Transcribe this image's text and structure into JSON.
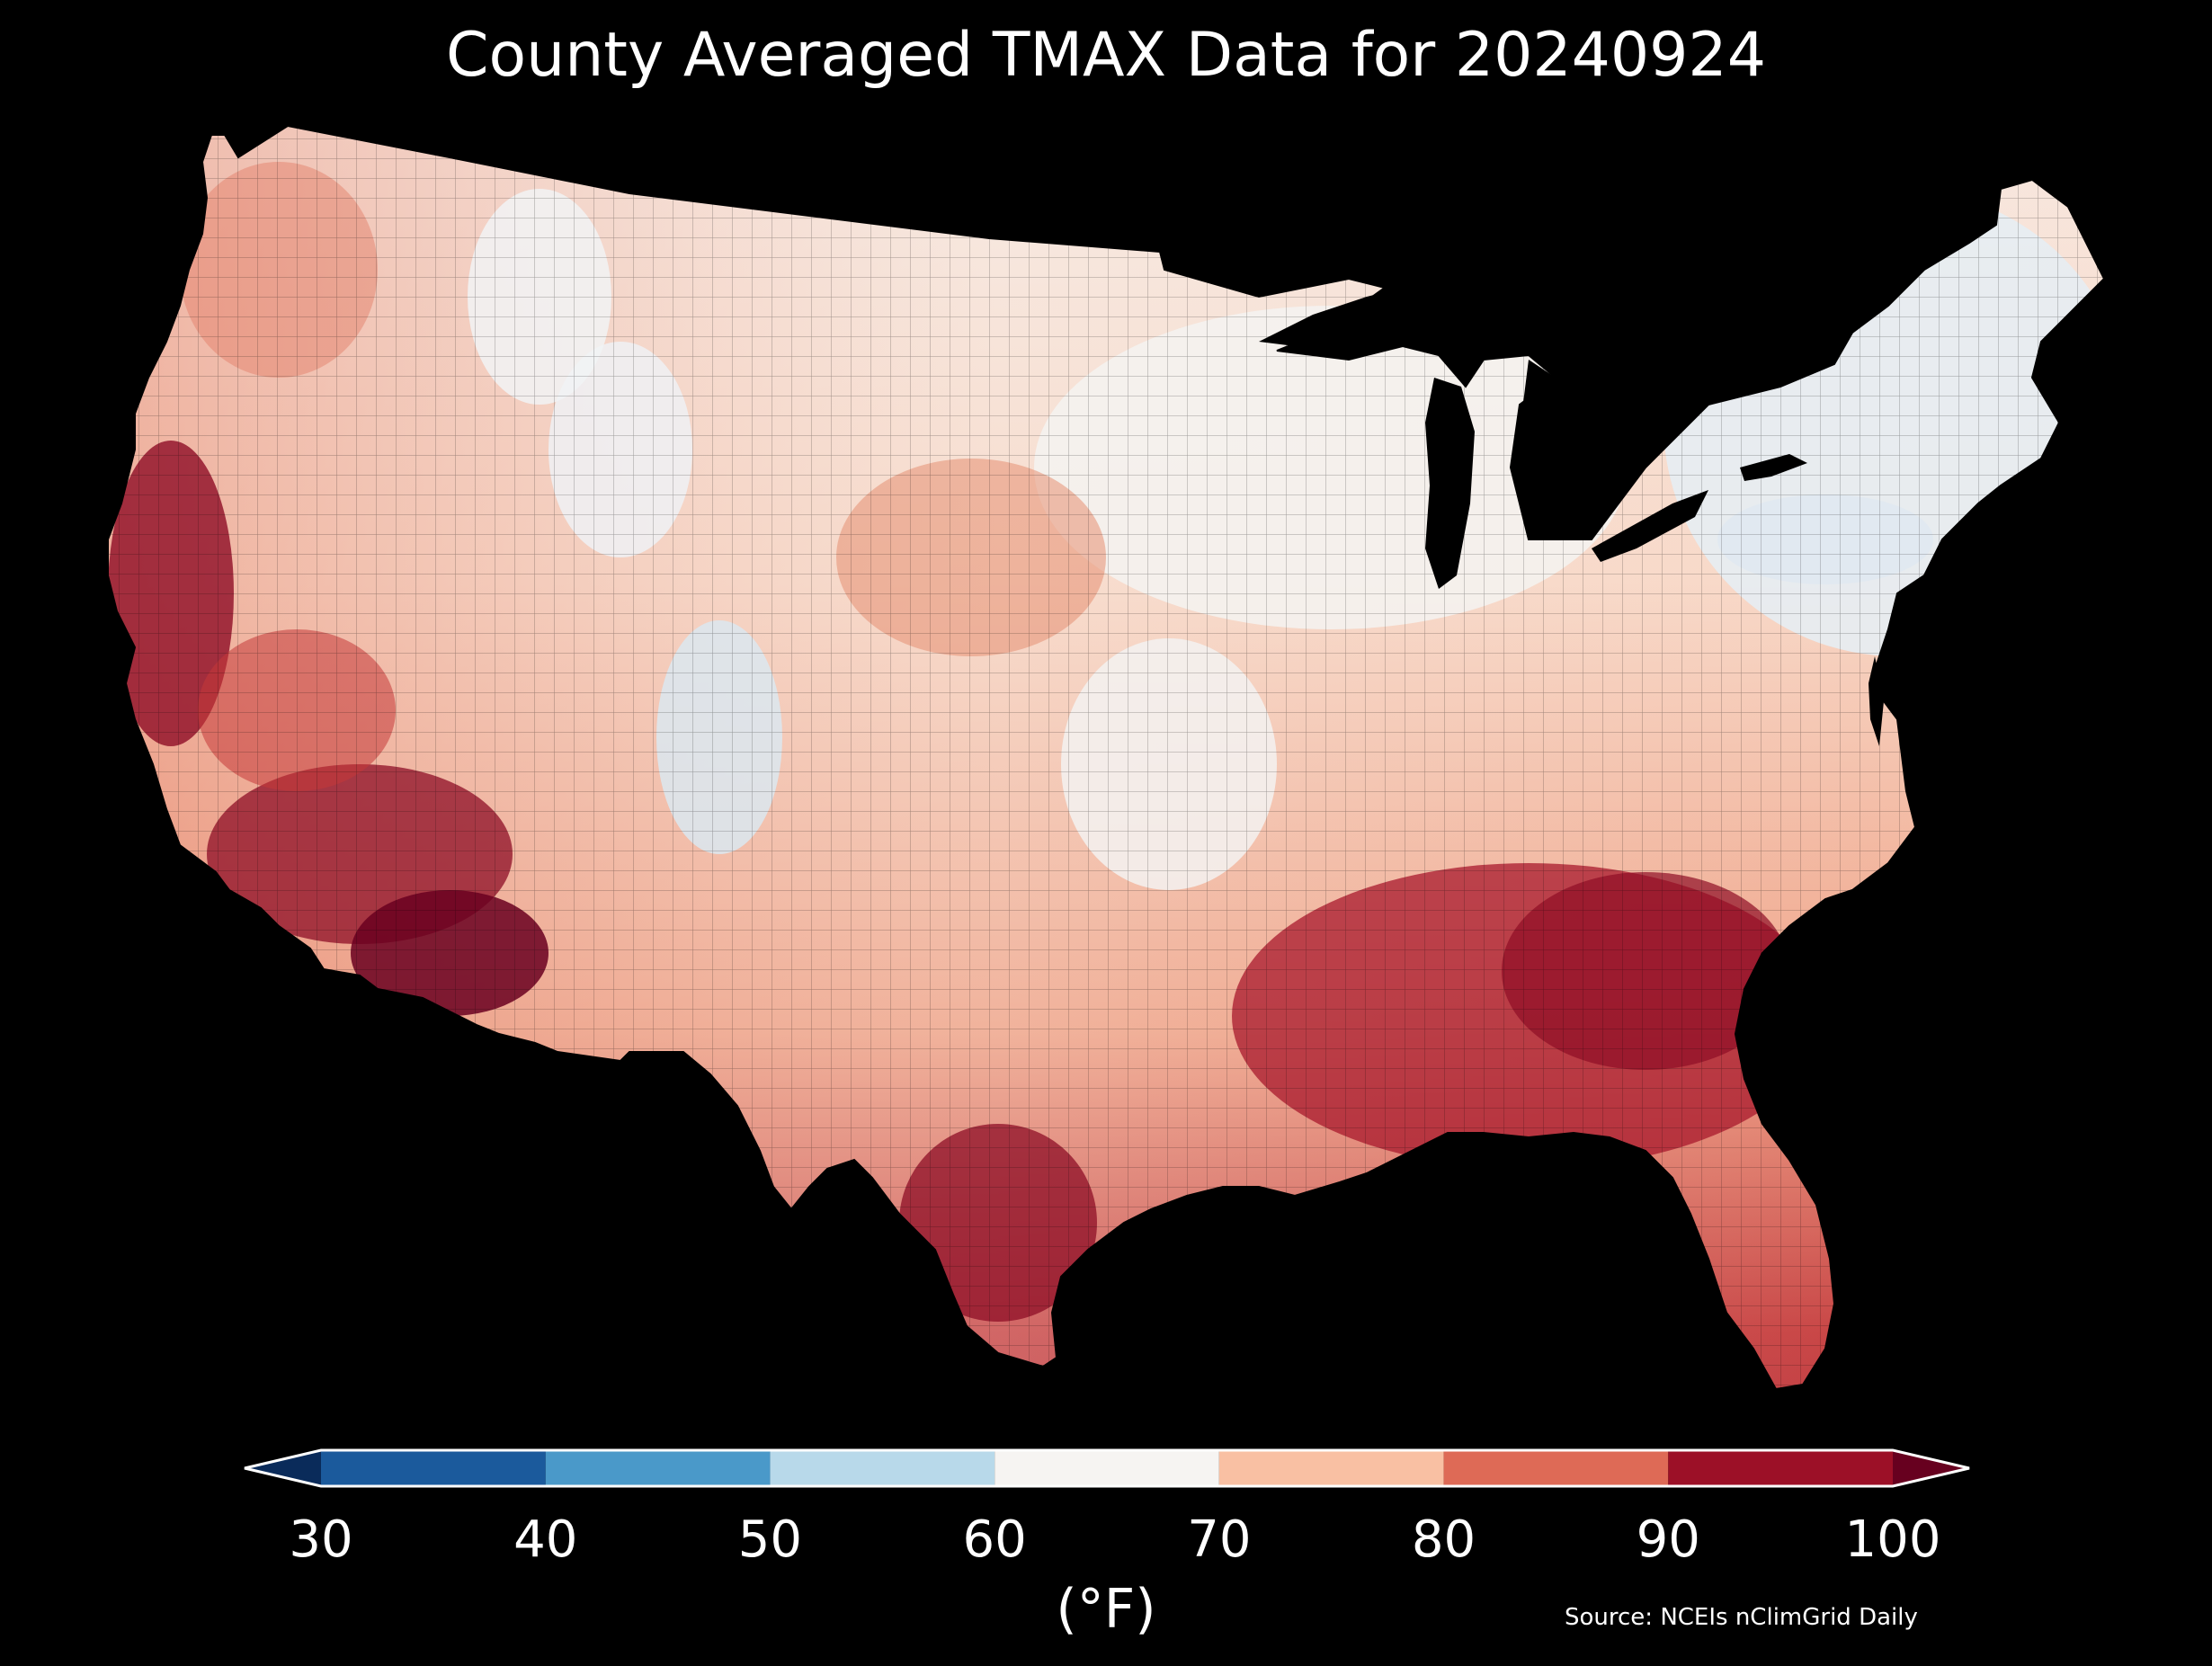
{
  "title": "County Averaged TMAX Data for 20240924",
  "colorbar": {
    "ticks": [
      "30",
      "40",
      "50",
      "60",
      "70",
      "80",
      "90",
      "100"
    ],
    "unit": "(°F)",
    "range": [
      30,
      100
    ],
    "extend": "both",
    "bins": [
      {
        "from": 30,
        "to": 40,
        "color": "#1b5a9c"
      },
      {
        "from": 40,
        "to": 50,
        "color": "#4a99c9"
      },
      {
        "from": 50,
        "to": 60,
        "color": "#b8d9ea"
      },
      {
        "from": 60,
        "to": 70,
        "color": "#f6f4f2"
      },
      {
        "from": 70,
        "to": 80,
        "color": "#f9c0a3"
      },
      {
        "from": 80,
        "to": 90,
        "color": "#de6a56"
      },
      {
        "from": 90,
        "to": 100,
        "color": "#9c1027"
      }
    ],
    "under_color": "#0a2b5a",
    "over_color": "#67001f"
  },
  "source": "Source: NCEIs nClimGrid Daily",
  "map": {
    "region": "Contiguous United States, county level",
    "hottest_regions": [
      "Southwest desert",
      "California Central Valley",
      "South Texas",
      "Southeast"
    ],
    "coolest_regions": [
      "Northeast",
      "Central Rockies"
    ]
  }
}
